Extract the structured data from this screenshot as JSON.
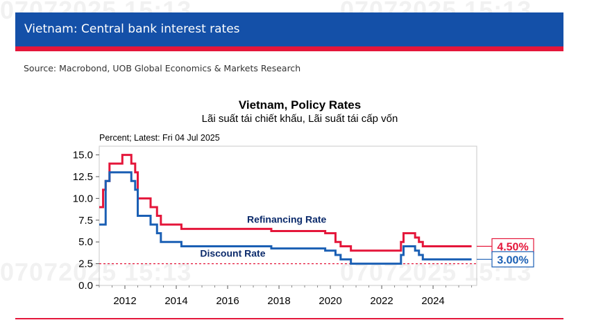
{
  "header": {
    "title": "Vietnam: Central bank interest rates"
  },
  "source": "Source: Macrobond, UOB Global Economics & Markets Research",
  "watermark": "07072025 15:13",
  "colors": {
    "header_blue": "#1450a8",
    "accent_red": "#e4163a",
    "discount_blue": "#1a5fb4",
    "refinancing_red": "#e4163a"
  },
  "chart_data": {
    "type": "line",
    "title": "Vietnam, Policy Rates",
    "subtitle": "Lãi suất tái chiết khấu, Lãi suất tái cấp vốn",
    "unit_note": "Percent; Latest: Fri 04 Jul 2025",
    "xlim": [
      2011.0,
      2025.7
    ],
    "ylim": [
      0,
      16
    ],
    "yticks": [
      0.0,
      2.5,
      5.0,
      7.5,
      10.0,
      12.5,
      15.0
    ],
    "ytick_labels": [
      "0.0",
      "2.5",
      "5.0",
      "7.5",
      "10.0",
      "12.5",
      "15.0"
    ],
    "xticks": [
      2012,
      2014,
      2016,
      2018,
      2020,
      2022,
      2024
    ],
    "xtick_labels": [
      "2012",
      "2014",
      "2016",
      "2018",
      "2020",
      "2022",
      "2024"
    ],
    "reference_line": {
      "y": 2.5,
      "style": "dashed"
    },
    "grid": false,
    "series": [
      {
        "name": "Refinancing Rate",
        "color": "#e4163a",
        "latest_label": "4.50%",
        "x": [
          2011.0,
          2011.15,
          2011.25,
          2011.4,
          2011.9,
          2012.25,
          2012.4,
          2012.5,
          2013.0,
          2013.25,
          2013.4,
          2014.2,
          2017.7,
          2019.8,
          2020.2,
          2020.4,
          2020.8,
          2022.75,
          2022.85,
          2023.3,
          2023.45,
          2023.6,
          2025.5
        ],
        "y": [
          9.0,
          11.0,
          12.0,
          14.0,
          15.0,
          14.0,
          13.0,
          10.0,
          9.0,
          8.0,
          7.0,
          6.5,
          6.25,
          6.0,
          5.0,
          4.5,
          4.0,
          5.0,
          6.0,
          5.5,
          5.0,
          4.5,
          4.5
        ]
      },
      {
        "name": "Discount Rate",
        "color": "#1a5fb4",
        "latest_label": "3.00%",
        "x": [
          2011.0,
          2011.25,
          2011.4,
          2012.25,
          2012.4,
          2012.5,
          2013.0,
          2013.25,
          2013.4,
          2014.2,
          2017.7,
          2019.8,
          2020.2,
          2020.4,
          2020.8,
          2022.75,
          2022.85,
          2023.3,
          2023.45,
          2023.6,
          2025.5
        ],
        "y": [
          7.0,
          12.0,
          13.0,
          12.0,
          11.0,
          8.0,
          7.0,
          6.0,
          5.0,
          4.5,
          4.25,
          4.0,
          3.5,
          3.0,
          2.5,
          3.5,
          4.5,
          4.0,
          3.5,
          3.0,
          3.0
        ]
      }
    ],
    "annotations": [
      {
        "text": "Refinancing Rate",
        "x": 2018.3,
        "y": 7.2
      },
      {
        "text": "Discount Rate",
        "x": 2016.2,
        "y": 3.3
      }
    ]
  }
}
